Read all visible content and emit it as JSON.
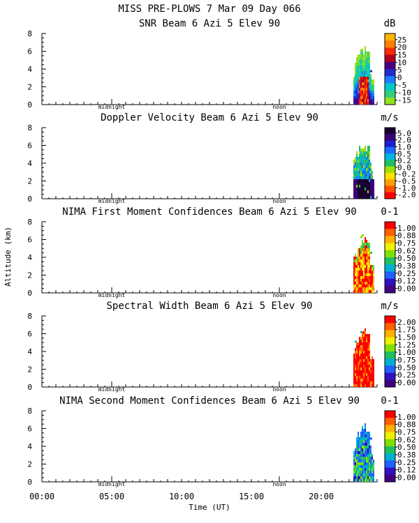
{
  "page": {
    "title": "MISS PRE-PLOWS   7 Mar 09 Day 066",
    "ylabel": "Altitude (km)",
    "xlabel": "Time (UT)",
    "midnight_label": "midnight",
    "noon_label": "noon"
  },
  "chart_data": [
    {
      "type": "heatmap",
      "title": "SNR Beam 6 Azi   5 Elev 90",
      "unit": "dB",
      "ylim": [
        0,
        8
      ],
      "yticks": [
        "0",
        "2",
        "4",
        "6",
        "8"
      ],
      "colorbar_labels": [
        "25",
        "20",
        "15",
        "10",
        "5",
        "0",
        "-5",
        "-10",
        "-15"
      ],
      "colorbar_colors": [
        "#ffb300",
        "#ff8000",
        "#ff2a00",
        "#b00020",
        "#4b0082",
        "#1e2ccf",
        "#1a7dff",
        "#00c8c8",
        "#30d080",
        "#90e020"
      ],
      "data_window_hours": [
        22.3,
        23.8
      ]
    },
    {
      "type": "heatmap",
      "title": "Doppler Velocity Beam 6 Azi   5 Elev 90",
      "unit": "m/s",
      "ylim": [
        0,
        8
      ],
      "yticks": [
        "0",
        "2",
        "4",
        "6",
        "8"
      ],
      "colorbar_labels": [
        "5.0",
        "2.0",
        "1.0",
        "0.5",
        "0.2",
        "0.0",
        "-0.2",
        "-0.5",
        "-1.0",
        "-2.0"
      ],
      "colorbar_colors": [
        "#1a0030",
        "#3a007a",
        "#1e1ed0",
        "#1a6aff",
        "#00b4e0",
        "#20c060",
        "#a0e000",
        "#ffe000",
        "#ffa000",
        "#ff5000",
        "#ff0000"
      ],
      "data_window_hours": [
        22.3,
        23.8
      ]
    },
    {
      "type": "heatmap",
      "title": "NIMA First Moment Confidences Beam 6 Azi   5 Elev 90",
      "unit": "0-1",
      "ylim": [
        0,
        8
      ],
      "yticks": [
        "0",
        "2",
        "4",
        "6",
        "8"
      ],
      "colorbar_labels": [
        "1.00",
        "0.88",
        "0.75",
        "0.62",
        "0.50",
        "0.38",
        "0.25",
        "0.12",
        "0.00"
      ],
      "colorbar_colors": [
        "#ff0000",
        "#ff6000",
        "#ffb000",
        "#f0f000",
        "#80e000",
        "#20c060",
        "#00b0d0",
        "#2060ff",
        "#3010c0",
        "#400080"
      ],
      "data_window_hours": [
        22.3,
        23.8
      ]
    },
    {
      "type": "heatmap",
      "title": "Spectral Width Beam 6 Azi   5 Elev 90",
      "unit": "m/s",
      "ylim": [
        0,
        8
      ],
      "yticks": [
        "0",
        "2",
        "4",
        "6",
        "8"
      ],
      "colorbar_labels": [
        "2.00",
        "1.75",
        "1.50",
        "1.25",
        "1.00",
        "0.75",
        "0.50",
        "0.25",
        "0.00"
      ],
      "colorbar_colors": [
        "#ff0000",
        "#ff6000",
        "#ffb000",
        "#f0f000",
        "#80e000",
        "#20c060",
        "#00b0d0",
        "#2060ff",
        "#3010c0",
        "#400080"
      ],
      "data_window_hours": [
        22.3,
        23.8
      ]
    },
    {
      "type": "heatmap",
      "title": "NIMA Second Moment Confidences Beam 6 Azi   5 Elev 90",
      "unit": "0-1",
      "ylim": [
        0,
        8
      ],
      "yticks": [
        "0",
        "2",
        "4",
        "6",
        "8"
      ],
      "colorbar_labels": [
        "1.00",
        "0.88",
        "0.75",
        "0.62",
        "0.50",
        "0.38",
        "0.25",
        "0.12",
        "0.00"
      ],
      "colorbar_colors": [
        "#ff0000",
        "#ff6000",
        "#ffb000",
        "#f0f000",
        "#80e000",
        "#20c060",
        "#00b0d0",
        "#2060ff",
        "#3010c0",
        "#400080"
      ],
      "data_window_hours": [
        22.3,
        23.8
      ]
    }
  ],
  "x_axis": {
    "range_hours": [
      0,
      24
    ],
    "tick_hours": [
      0,
      5,
      10,
      15,
      20
    ],
    "tick_labels": [
      "00:00",
      "05:00",
      "10:00",
      "15:00",
      "20:00"
    ],
    "midnight_hour": 5,
    "noon_hour": 17
  }
}
